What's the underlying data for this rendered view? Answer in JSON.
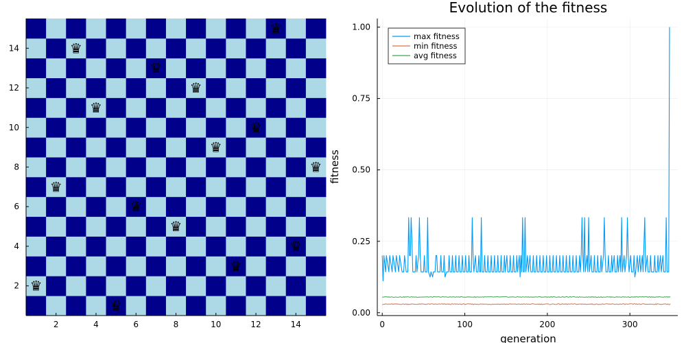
{
  "board_chart": {
    "type": "heatmap",
    "board_size": 15,
    "light_color": "#add8e6",
    "dark_color": "#00008b",
    "queen_glyph": "♛",
    "queen_icon": "queen-icon",
    "queens": [
      {
        "col": 1,
        "row": 2
      },
      {
        "col": 2,
        "row": 7
      },
      {
        "col": 3,
        "row": 14
      },
      {
        "col": 4,
        "row": 11
      },
      {
        "col": 5,
        "row": 1
      },
      {
        "col": 6,
        "row": 6
      },
      {
        "col": 7,
        "row": 13
      },
      {
        "col": 8,
        "row": 5
      },
      {
        "col": 9,
        "row": 12
      },
      {
        "col": 10,
        "row": 9
      },
      {
        "col": 11,
        "row": 3
      },
      {
        "col": 12,
        "row": 10
      },
      {
        "col": 13,
        "row": 15
      },
      {
        "col": 14,
        "row": 4
      },
      {
        "col": 15,
        "row": 8
      }
    ],
    "xticks": [
      "2",
      "4",
      "6",
      "8",
      "10",
      "12",
      "14"
    ],
    "yticks": [
      "2",
      "4",
      "6",
      "8",
      "10",
      "12",
      "14"
    ]
  },
  "chart_data": {
    "type": "line",
    "title": "Evolution of the fitness",
    "xlabel": "generation",
    "ylabel": "fitness",
    "xlim": [
      -6,
      358
    ],
    "ylim": [
      -0.01,
      1.03
    ],
    "xticks": [
      "0",
      "100",
      "200",
      "300"
    ],
    "yticks": [
      "0.00",
      "0.25",
      "0.50",
      "0.75",
      "1.00"
    ],
    "grid": true,
    "legend_position": "top-left",
    "generations": 350,
    "series": [
      {
        "name": "max fitness",
        "color": "#009af9",
        "points": [
          [
            0,
            0.2
          ],
          [
            1,
            0.111
          ],
          [
            2,
            0.2
          ],
          [
            4,
            0.143
          ],
          [
            5,
            0.2
          ],
          [
            8,
            0.143
          ],
          [
            9,
            0.2
          ],
          [
            12,
            0.143
          ],
          [
            13,
            0.2
          ],
          [
            16,
            0.143
          ],
          [
            17,
            0.2
          ],
          [
            20,
            0.143
          ],
          [
            21,
            0.2
          ],
          [
            24,
            0.143
          ],
          [
            26,
            0.143
          ],
          [
            27,
            0.2
          ],
          [
            29,
            0.143
          ],
          [
            31,
            0.143
          ],
          [
            32,
            0.333
          ],
          [
            33,
            0.2
          ],
          [
            34,
            0.2
          ],
          [
            35,
            0.333
          ],
          [
            36,
            0.25
          ],
          [
            37,
            0.143
          ],
          [
            40,
            0.143
          ],
          [
            41,
            0.2
          ],
          [
            42,
            0.143
          ],
          [
            44,
            0.2
          ],
          [
            45,
            0.333
          ],
          [
            46,
            0.2
          ],
          [
            47,
            0.143
          ],
          [
            50,
            0.143
          ],
          [
            51,
            0.2
          ],
          [
            52,
            0.143
          ],
          [
            54,
            0.143
          ],
          [
            55,
            0.333
          ],
          [
            56,
            0.143
          ],
          [
            58,
            0.125
          ],
          [
            59,
            0.143
          ],
          [
            61,
            0.125
          ],
          [
            62,
            0.143
          ],
          [
            64,
            0.143
          ],
          [
            65,
            0.2
          ],
          [
            66,
            0.2
          ],
          [
            67,
            0.143
          ],
          [
            70,
            0.143
          ],
          [
            71,
            0.2
          ],
          [
            72,
            0.143
          ],
          [
            74,
            0.143
          ],
          [
            75,
            0.2
          ],
          [
            76,
            0.125
          ],
          [
            78,
            0.143
          ],
          [
            80,
            0.143
          ],
          [
            81,
            0.2
          ],
          [
            82,
            0.143
          ],
          [
            84,
            0.143
          ],
          [
            85,
            0.2
          ],
          [
            86,
            0.143
          ],
          [
            88,
            0.143
          ],
          [
            89,
            0.2
          ],
          [
            90,
            0.143
          ],
          [
            92,
            0.143
          ],
          [
            93,
            0.2
          ],
          [
            94,
            0.143
          ],
          [
            96,
            0.143
          ],
          [
            97,
            0.2
          ],
          [
            98,
            0.143
          ],
          [
            100,
            0.143
          ],
          [
            101,
            0.2
          ],
          [
            102,
            0.143
          ],
          [
            104,
            0.143
          ],
          [
            105,
            0.2
          ],
          [
            106,
            0.143
          ],
          [
            108,
            0.143
          ],
          [
            109,
            0.333
          ],
          [
            110,
            0.2
          ],
          [
            111,
            0.143
          ],
          [
            113,
            0.2
          ],
          [
            114,
            0.143
          ],
          [
            116,
            0.143
          ],
          [
            117,
            0.2
          ],
          [
            118,
            0.143
          ],
          [
            119,
            0.143
          ],
          [
            120,
            0.333
          ],
          [
            121,
            0.143
          ],
          [
            123,
            0.143
          ],
          [
            124,
            0.2
          ],
          [
            125,
            0.143
          ],
          [
            127,
            0.143
          ],
          [
            128,
            0.2
          ],
          [
            129,
            0.143
          ],
          [
            131,
            0.143
          ],
          [
            132,
            0.2
          ],
          [
            133,
            0.143
          ],
          [
            135,
            0.143
          ],
          [
            136,
            0.2
          ],
          [
            137,
            0.143
          ],
          [
            139,
            0.143
          ],
          [
            140,
            0.2
          ],
          [
            141,
            0.143
          ],
          [
            143,
            0.143
          ],
          [
            144,
            0.2
          ],
          [
            145,
            0.143
          ],
          [
            147,
            0.143
          ],
          [
            148,
            0.2
          ],
          [
            149,
            0.143
          ],
          [
            151,
            0.2
          ],
          [
            152,
            0.143
          ],
          [
            154,
            0.143
          ],
          [
            155,
            0.2
          ],
          [
            156,
            0.143
          ],
          [
            158,
            0.143
          ],
          [
            159,
            0.2
          ],
          [
            160,
            0.143
          ],
          [
            162,
            0.143
          ],
          [
            163,
            0.2
          ],
          [
            164,
            0.143
          ],
          [
            166,
            0.2
          ],
          [
            167,
            0.125
          ],
          [
            168,
            0.2
          ],
          [
            169,
            0.143
          ],
          [
            170,
            0.333
          ],
          [
            171,
            0.143
          ],
          [
            172,
            0.143
          ],
          [
            173,
            0.333
          ],
          [
            174,
            0.143
          ],
          [
            176,
            0.2
          ],
          [
            177,
            0.143
          ],
          [
            179,
            0.2
          ],
          [
            180,
            0.143
          ],
          [
            182,
            0.143
          ],
          [
            183,
            0.2
          ],
          [
            184,
            0.143
          ],
          [
            186,
            0.143
          ],
          [
            187,
            0.2
          ],
          [
            188,
            0.143
          ],
          [
            190,
            0.143
          ],
          [
            191,
            0.2
          ],
          [
            192,
            0.143
          ],
          [
            194,
            0.143
          ],
          [
            195,
            0.2
          ],
          [
            196,
            0.143
          ],
          [
            198,
            0.143
          ],
          [
            199,
            0.2
          ],
          [
            200,
            0.143
          ],
          [
            202,
            0.143
          ],
          [
            203,
            0.2
          ],
          [
            204,
            0.143
          ],
          [
            206,
            0.143
          ],
          [
            207,
            0.2
          ],
          [
            208,
            0.143
          ],
          [
            210,
            0.143
          ],
          [
            211,
            0.2
          ],
          [
            212,
            0.143
          ],
          [
            214,
            0.143
          ],
          [
            215,
            0.2
          ],
          [
            216,
            0.143
          ],
          [
            218,
            0.143
          ],
          [
            219,
            0.2
          ],
          [
            220,
            0.143
          ],
          [
            222,
            0.143
          ],
          [
            223,
            0.2
          ],
          [
            224,
            0.143
          ],
          [
            226,
            0.143
          ],
          [
            227,
            0.2
          ],
          [
            228,
            0.143
          ],
          [
            230,
            0.143
          ],
          [
            231,
            0.2
          ],
          [
            232,
            0.143
          ],
          [
            234,
            0.143
          ],
          [
            235,
            0.2
          ],
          [
            236,
            0.143
          ],
          [
            238,
            0.143
          ],
          [
            239,
            0.2
          ],
          [
            240,
            0.143
          ],
          [
            241,
            0.2
          ],
          [
            242,
            0.333
          ],
          [
            243,
            0.2
          ],
          [
            244,
            0.143
          ],
          [
            245,
            0.333
          ],
          [
            246,
            0.143
          ],
          [
            248,
            0.2
          ],
          [
            249,
            0.143
          ],
          [
            250,
            0.333
          ],
          [
            251,
            0.143
          ],
          [
            253,
            0.2
          ],
          [
            254,
            0.143
          ],
          [
            256,
            0.143
          ],
          [
            257,
            0.2
          ],
          [
            258,
            0.143
          ],
          [
            260,
            0.143
          ],
          [
            261,
            0.2
          ],
          [
            262,
            0.143
          ],
          [
            264,
            0.143
          ],
          [
            265,
            0.2
          ],
          [
            266,
            0.143
          ],
          [
            268,
            0.2
          ],
          [
            269,
            0.333
          ],
          [
            270,
            0.2
          ],
          [
            271,
            0.143
          ],
          [
            273,
            0.143
          ],
          [
            274,
            0.2
          ],
          [
            275,
            0.143
          ],
          [
            277,
            0.143
          ],
          [
            278,
            0.2
          ],
          [
            279,
            0.143
          ],
          [
            281,
            0.2
          ],
          [
            282,
            0.143
          ],
          [
            284,
            0.143
          ],
          [
            285,
            0.2
          ],
          [
            286,
            0.143
          ],
          [
            288,
            0.2
          ],
          [
            289,
            0.143
          ],
          [
            290,
            0.333
          ],
          [
            291,
            0.143
          ],
          [
            293,
            0.2
          ],
          [
            294,
            0.143
          ],
          [
            296,
            0.2
          ],
          [
            297,
            0.333
          ],
          [
            298,
            0.2
          ],
          [
            299,
            0.143
          ],
          [
            301,
            0.2
          ],
          [
            302,
            0.143
          ],
          [
            304,
            0.143
          ],
          [
            305,
            0.2
          ],
          [
            306,
            0.125
          ],
          [
            307,
            0.143
          ],
          [
            309,
            0.2
          ],
          [
            310,
            0.143
          ],
          [
            312,
            0.2
          ],
          [
            313,
            0.143
          ],
          [
            315,
            0.2
          ],
          [
            316,
            0.143
          ],
          [
            318,
            0.333
          ],
          [
            319,
            0.143
          ],
          [
            321,
            0.2
          ],
          [
            322,
            0.143
          ],
          [
            324,
            0.143
          ],
          [
            325,
            0.2
          ],
          [
            326,
            0.143
          ],
          [
            328,
            0.143
          ],
          [
            329,
            0.143
          ],
          [
            330,
            0.2
          ],
          [
            331,
            0.143
          ],
          [
            333,
            0.143
          ],
          [
            334,
            0.2
          ],
          [
            335,
            0.143
          ],
          [
            337,
            0.2
          ],
          [
            338,
            0.143
          ],
          [
            340,
            0.2
          ],
          [
            341,
            0.143
          ],
          [
            343,
            0.143
          ],
          [
            344,
            0.333
          ],
          [
            345,
            0.143
          ],
          [
            347,
            0.143
          ],
          [
            348,
            1.0
          ]
        ]
      },
      {
        "name": "min fitness",
        "color": "#e26f46",
        "level": 0.03,
        "jitter": 0.0015
      },
      {
        "name": "avg fitness",
        "color": "#3da44d",
        "level": 0.055,
        "jitter": 0.0012
      }
    ]
  }
}
